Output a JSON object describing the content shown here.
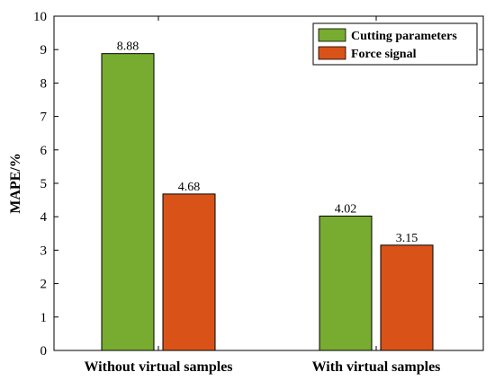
{
  "chart_data": {
    "type": "bar",
    "categories": [
      "Without virtual samples",
      "With virtual samples"
    ],
    "series": [
      {
        "name": "Cutting parameters",
        "values": [
          8.88,
          4.02
        ],
        "color": "#77AC30"
      },
      {
        "name": "Force signal",
        "values": [
          4.68,
          3.15
        ],
        "color": "#D95319"
      }
    ],
    "value_labels": [
      [
        "8.88",
        "4.02"
      ],
      [
        "4.68",
        "3.15"
      ]
    ],
    "title": "",
    "xlabel": "",
    "ylabel": "MAPE/%",
    "ylim": [
      0,
      10
    ],
    "yticks": [
      "0",
      "1",
      "2",
      "3",
      "4",
      "5",
      "6",
      "7",
      "8",
      "9",
      "10"
    ],
    "grid": false,
    "legend_position": "top-right"
  }
}
